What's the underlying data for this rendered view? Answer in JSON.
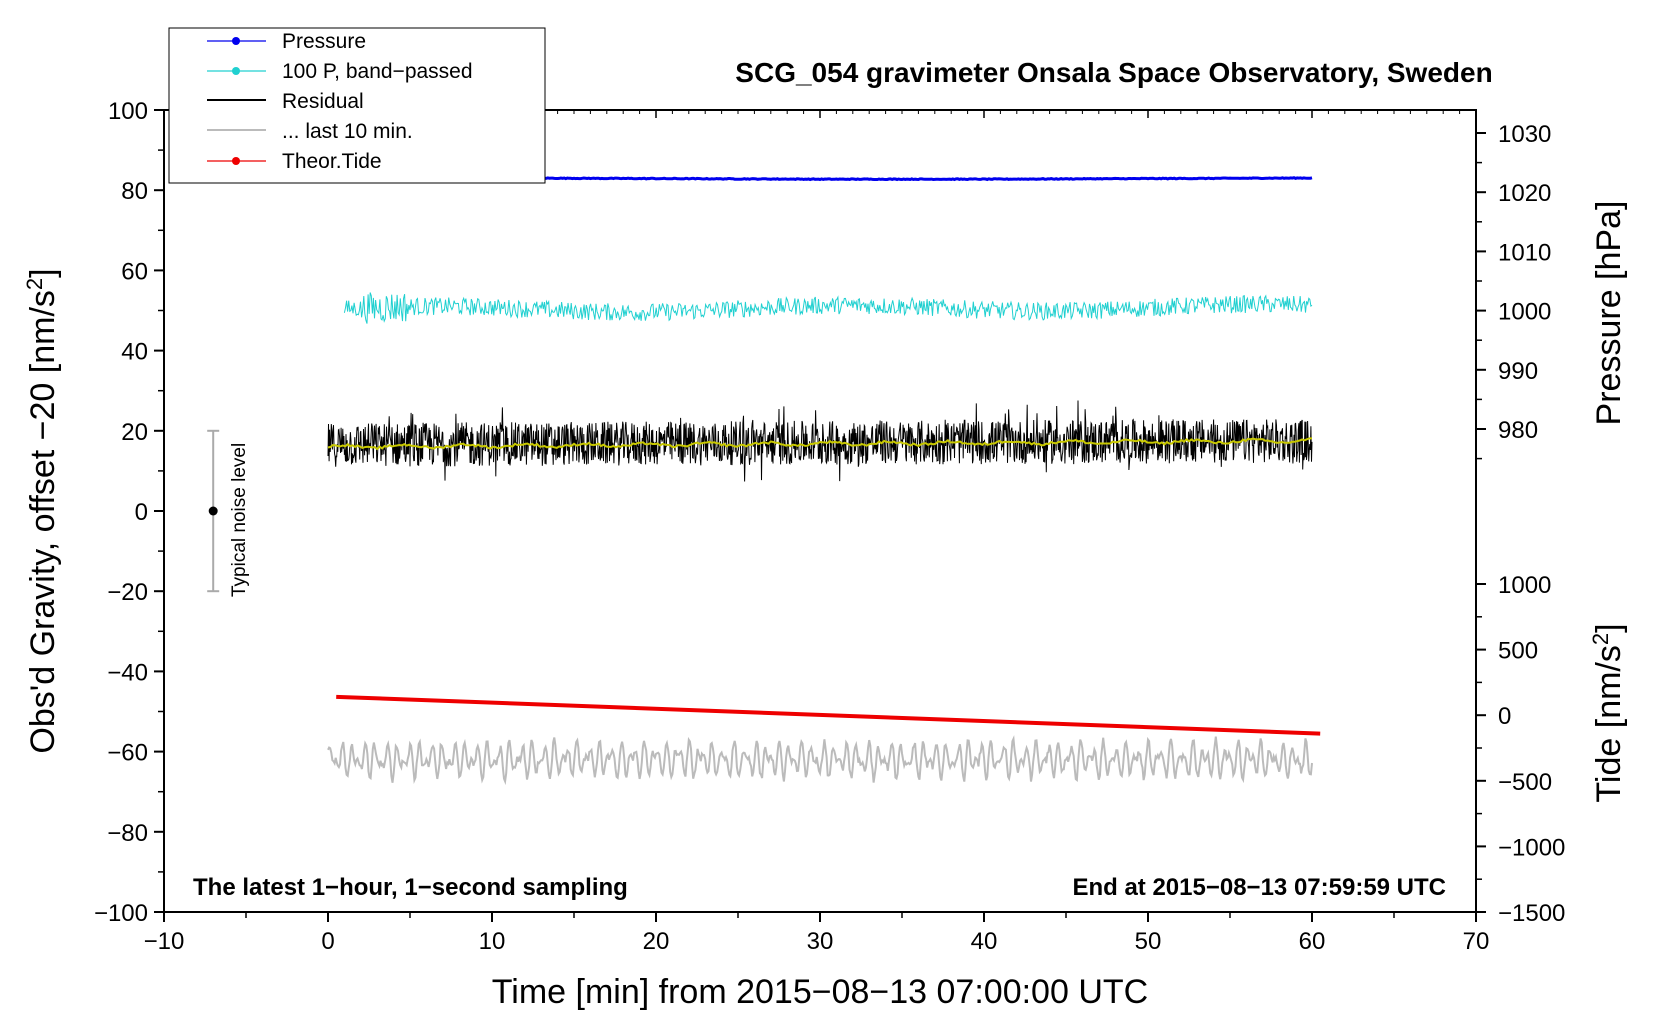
{
  "chart_data": {
    "type": "line",
    "title": "SCG_054 gravimeter Onsala Space Observatory, Sweden",
    "xlabel": "Time [min] from 2015−08−13 07:00:00 UTC",
    "ylabel": "Obs'd Gravity, offset −20 [nm/s",
    "ylabel_sup": "2",
    "ylabel_close": "]",
    "y2label_pressure": "Pressure [hPa]",
    "y2label_tide": "Tide [nm/s",
    "y2label_tide_sup": "2",
    "y2label_tide_close": "]",
    "xlim": [
      -10,
      70
    ],
    "ylim": [
      -100,
      100
    ],
    "pressure_lim": [
      968.6,
      1032.9
    ],
    "tide_lim": [
      -1500,
      1000
    ],
    "x_ticks": [
      -10,
      0,
      10,
      20,
      30,
      40,
      50,
      60,
      70
    ],
    "x_tick_labels": [
      "−10",
      "0",
      "10",
      "20",
      "30",
      "40",
      "50",
      "60",
      "70"
    ],
    "y_ticks": [
      -100,
      -80,
      -60,
      -40,
      -20,
      0,
      20,
      40,
      60,
      80,
      100
    ],
    "y_tick_labels": [
      "−100",
      "−80",
      "−60",
      "−40",
      "−20",
      "0",
      "20",
      "40",
      "60",
      "80",
      "100"
    ],
    "pressure_ticks": [
      980,
      990,
      1000,
      1010,
      1020,
      1030
    ],
    "pressure_tick_labels": [
      "980",
      "990",
      "1000",
      "1010",
      "1020",
      "1030"
    ],
    "tide_ticks": [
      -1500,
      -1000,
      -500,
      0,
      500,
      1000
    ],
    "tide_tick_labels": [
      "−1500",
      "−1000",
      "−500",
      "0",
      "500",
      "1000"
    ],
    "series": [
      {
        "name": "Pressure",
        "axis": "pressure",
        "color": "#0000ee",
        "x": [
          0,
          10,
          20,
          30,
          40,
          50,
          60
        ],
        "y": [
          1022.5,
          1022.4,
          1022.3,
          1022.2,
          1022.2,
          1022.3,
          1022.4
        ]
      },
      {
        "name": "100 P, band−passed",
        "axis": "gravity",
        "color": "#20d0d0",
        "x": [
          1,
          60
        ],
        "y": [
          50.2,
          50.8
        ],
        "noise_amplitude": 2.2
      },
      {
        "name": "Residual",
        "axis": "gravity",
        "color": "#000000",
        "x": [
          0,
          60
        ],
        "y": [
          16.5,
          17.5
        ],
        "noise_amplitude": 5.5
      },
      {
        "name": "Residual smoothed",
        "axis": "gravity",
        "color": "#c8c800",
        "x": [
          0,
          60
        ],
        "y": [
          16,
          17.5
        ]
      },
      {
        "name": "... last 10 min.",
        "axis": "gravity",
        "color": "#bbbbbb",
        "x": [
          0,
          60
        ],
        "y": [
          -62,
          -62
        ],
        "oscillation_amplitude": 4.5
      },
      {
        "name": "Theor.Tide",
        "axis": "tide",
        "color": "#ee0000",
        "x": [
          0.5,
          60.5
        ],
        "y": [
          140,
          -140
        ]
      }
    ],
    "noise_bar": {
      "label": "Typical noise level",
      "x": -7,
      "center": 0,
      "low": -20,
      "high": 20
    },
    "legend": {
      "placement": "top-left",
      "entries": [
        "Pressure",
        "100 P, band−passed",
        "Residual",
        "... last 10 min.",
        "Theor.Tide"
      ]
    },
    "annotations": {
      "bottom_left": "The latest 1−hour, 1−second sampling",
      "bottom_right": "End at 2015−08−13 07:59:59 UTC"
    }
  },
  "colors": {
    "pressure": "#0000ee",
    "bandpassed": "#20d0d0",
    "residual": "#000000",
    "smoothed": "#c8c800",
    "last10": "#bbbbbb",
    "tide": "#ee0000",
    "noise_bar": "#aaaaaa"
  }
}
